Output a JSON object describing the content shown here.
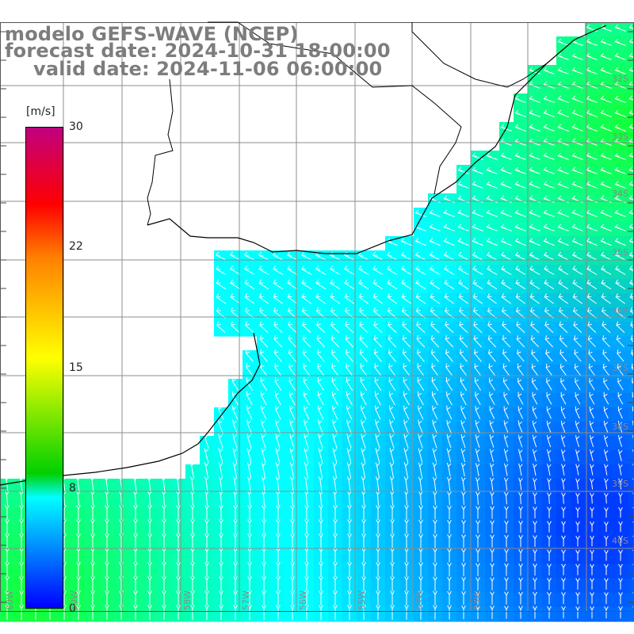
{
  "title": {
    "line1": "modelo GEFS-WAVE (NCEP)",
    "line2": "forecast date: 2024-10-31 18:00:00",
    "line3": "valid date: 2024-11-06 06:00:00"
  },
  "colorbar": {
    "unit": "[m/s]",
    "ticks": [
      "30",
      "22",
      "15",
      "8",
      "0"
    ],
    "colors": [
      "#c0007f",
      "#ff0000",
      "#ff8000",
      "#ffff00",
      "#00d000",
      "#00ffff",
      "#0000ff"
    ]
  },
  "grid": {
    "lat_labels": [
      "32S",
      "33S",
      "34S",
      "35S",
      "36S",
      "37S",
      "38S",
      "39S",
      "40S"
    ],
    "lon_labels": [
      "60W",
      "59W",
      "58W",
      "57W",
      "56W",
      "55W",
      "54W",
      "53W"
    ]
  },
  "colors": {
    "land": "#ffffff",
    "coastline": "#000000",
    "grid": "#8c8c8c",
    "arrows": "#ffffff",
    "title": "#7d7d7d"
  }
}
